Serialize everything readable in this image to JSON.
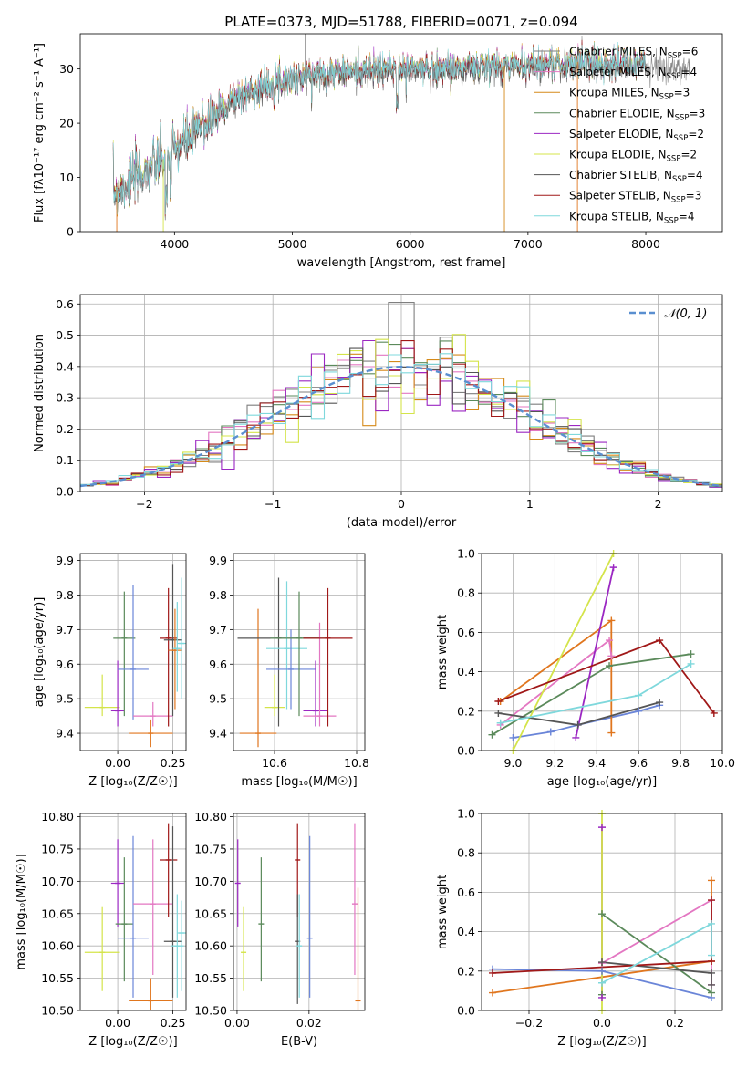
{
  "colors": {
    "Chabrier MILES": "#7f7f7f",
    "Salpeter MILES": "#e377c2",
    "Kroupa MILES": "#d58a1a",
    "Chabrier ELODIE": "#5b8a5b",
    "Salpeter ELODIE": "#9b27c2",
    "Kroupa ELODIE": "#d4e44a",
    "Chabrier STELIB": "#555555",
    "Salpeter STELIB": "#a01818",
    "Kroupa STELIB": "#7fd8dc",
    "blue": "#6a85d8",
    "orange": "#e0761e",
    "normal": "#5a8fd0"
  },
  "chart_data": [
    {
      "id": "spectrum",
      "type": "line",
      "title": "PLATE=0373, MJD=51788, FIBERID=0071, z=0.094",
      "xlabel": "wavelength [Angstrom, rest frame]",
      "ylabel": "Flux [fλ10⁻¹⁷ erg cm⁻² s⁻¹ A⁻¹]",
      "xlim": [
        3200,
        8650
      ],
      "ylim": [
        0,
        36.5
      ],
      "xticks": [
        "4000",
        "5000",
        "6000",
        "7000",
        "8000"
      ],
      "xtick_values": [
        4000,
        5000,
        6000,
        7000,
        8000
      ],
      "yticks": [
        "0",
        "10",
        "20",
        "30"
      ],
      "ytick_values": [
        0,
        10,
        20,
        30
      ],
      "grid": false,
      "legend_placement": "top-right",
      "legend": [
        {
          "base": "Chabrier MILES, N",
          "sub": "SSP",
          "tail": "=6",
          "color_key": "Chabrier MILES"
        },
        {
          "base": "Salpeter MILES, N",
          "sub": "SSP",
          "tail": "=4",
          "color_key": "Salpeter MILES"
        },
        {
          "base": "Kroupa MILES, N",
          "sub": "SSP",
          "tail": "=3",
          "color_key": "Kroupa MILES"
        },
        {
          "base": "Chabrier ELODIE, N",
          "sub": "SSP",
          "tail": "=3",
          "color_key": "Chabrier ELODIE"
        },
        {
          "base": "Salpeter ELODIE, N",
          "sub": "SSP",
          "tail": "=2",
          "color_key": "Salpeter ELODIE"
        },
        {
          "base": "Kroupa ELODIE, N",
          "sub": "SSP",
          "tail": "=2",
          "color_key": "Kroupa ELODIE"
        },
        {
          "base": "Chabrier STELIB, N",
          "sub": "SSP",
          "tail": "=4",
          "color_key": "Chabrier STELIB"
        },
        {
          "base": "Salpeter STELIB, N",
          "sub": "SSP",
          "tail": "=3",
          "color_key": "Salpeter STELIB"
        },
        {
          "base": "Kroupa STELIB, N",
          "sub": "SSP",
          "tail": "=4",
          "color_key": "Kroupa STELIB"
        }
      ],
      "continuum": [
        [
          3500,
          7.5
        ],
        [
          3650,
          10
        ],
        [
          3800,
          12
        ],
        [
          3950,
          14
        ],
        [
          4100,
          17
        ],
        [
          4300,
          21
        ],
        [
          4500,
          24.5
        ],
        [
          4700,
          26.5
        ],
        [
          4900,
          28
        ],
        [
          5100,
          28.8
        ],
        [
          5300,
          29.5
        ],
        [
          5500,
          29.7
        ],
        [
          5700,
          29.9
        ],
        [
          5900,
          30
        ],
        [
          6100,
          30.2
        ],
        [
          6300,
          30.3
        ],
        [
          6500,
          30.4
        ],
        [
          6700,
          30.5
        ],
        [
          6900,
          30.8
        ],
        [
          7100,
          31.2
        ],
        [
          7300,
          31
        ],
        [
          7500,
          31.5
        ],
        [
          7700,
          30.8
        ],
        [
          7900,
          31
        ],
        [
          8100,
          30.2
        ],
        [
          8300,
          30
        ]
      ],
      "spikes": [
        {
          "x": 5110,
          "y": 36.5,
          "color_key": "Chabrier MILES"
        },
        {
          "x": 7420,
          "y": 0,
          "color_key": "orange"
        },
        {
          "x": 6800,
          "y": 0,
          "color_key": "Kroupa MILES"
        },
        {
          "x": 3905,
          "y": 0,
          "color_key": "Kroupa ELODIE"
        },
        {
          "x": 3510,
          "y": 0,
          "color_key": "orange"
        }
      ]
    },
    {
      "id": "residuals",
      "type": "histogram",
      "xlabel": "(data-model)/error",
      "ylabel": "Normed distribution",
      "xlim": [
        -2.5,
        2.5
      ],
      "ylim": [
        0,
        0.63
      ],
      "xticks": [
        "−2",
        "−1",
        "0",
        "1",
        "2"
      ],
      "xtick_values": [
        -2,
        -1,
        0,
        1,
        2
      ],
      "yticks": [
        "0.0",
        "0.1",
        "0.2",
        "0.3",
        "0.4",
        "0.5",
        "0.6"
      ],
      "ytick_values": [
        0,
        0.1,
        0.2,
        0.3,
        0.4,
        0.5,
        0.6
      ],
      "grid": true,
      "legend_placement": "top-right",
      "legend_label": "𝒩(0, 1)",
      "bin_width": 0.1
    },
    {
      "id": "age_vs_Z",
      "type": "errorbar",
      "xlabel": "Z [log₁₀(Z/Z☉)]",
      "ylabel": "age  [log₁₀(age/yr)]",
      "xlim": [
        -0.17,
        0.31
      ],
      "ylim": [
        9.35,
        9.92
      ],
      "xticks": [
        "0.00",
        "0.25"
      ],
      "xtick_values": [
        0,
        0.25
      ],
      "yticks": [
        "9.4",
        "9.5",
        "9.6",
        "9.7",
        "9.8",
        "9.9"
      ],
      "ytick_values": [
        9.4,
        9.5,
        9.6,
        9.7,
        9.8,
        9.9
      ],
      "grid": true,
      "points": [
        {
          "x": -0.07,
          "y": 9.475,
          "xe": 0.08,
          "ylo": 9.45,
          "yhi": 9.57,
          "c": "Kroupa ELODIE"
        },
        {
          "x": 0.0,
          "y": 9.465,
          "xe": 0.03,
          "ylo": 9.42,
          "yhi": 9.61,
          "c": "Salpeter ELODIE"
        },
        {
          "x": 0.03,
          "y": 9.675,
          "xe": 0.05,
          "ylo": 9.45,
          "yhi": 9.81,
          "c": "Chabrier ELODIE"
        },
        {
          "x": 0.07,
          "y": 9.585,
          "xe": 0.07,
          "ylo": 9.44,
          "yhi": 9.83,
          "c": "blue"
        },
        {
          "x": 0.15,
          "y": 9.4,
          "xe": 0.1,
          "ylo": 9.36,
          "yhi": 9.44,
          "c": "orange"
        },
        {
          "x": 0.16,
          "y": 9.45,
          "xe": 0.09,
          "ylo": 9.42,
          "yhi": 9.49,
          "c": "Salpeter MILES"
        },
        {
          "x": 0.23,
          "y": 9.675,
          "xe": 0.04,
          "ylo": 9.42,
          "yhi": 9.82,
          "c": "Salpeter STELIB"
        },
        {
          "x": 0.25,
          "y": 9.67,
          "xe": 0.04,
          "ylo": 9.45,
          "yhi": 9.89,
          "c": "Chabrier STELIB"
        },
        {
          "x": 0.26,
          "y": 9.64,
          "xe": 0.03,
          "ylo": 9.47,
          "yhi": 9.76,
          "c": "orange"
        },
        {
          "x": 0.27,
          "y": 9.645,
          "xe": 0.02,
          "ylo": 9.52,
          "yhi": 9.78,
          "c": "Kroupa STELIB"
        },
        {
          "x": 0.29,
          "y": 9.66,
          "xe": 0.02,
          "ylo": 9.5,
          "yhi": 9.85,
          "c": "Kroupa STELIB"
        }
      ]
    },
    {
      "id": "age_vs_mass",
      "type": "errorbar",
      "xlabel": "mass [log₁₀(M/M☉)]",
      "ylabel": "",
      "xlim": [
        10.5,
        10.82
      ],
      "ylim": [
        9.35,
        9.92
      ],
      "xticks": [
        "10.6",
        "10.8"
      ],
      "xtick_values": [
        10.6,
        10.8
      ],
      "yticks": [
        "9.4",
        "9.5",
        "9.6",
        "9.7",
        "9.8",
        "9.9"
      ],
      "ytick_values": [
        9.4,
        9.5,
        9.6,
        9.7,
        9.8,
        9.9
      ],
      "grid": true,
      "points": [
        {
          "x": 10.56,
          "y": 9.4,
          "xe": 0.045,
          "ylo": 9.36,
          "yhi": 9.76,
          "c": "orange"
        },
        {
          "x": 10.6,
          "y": 9.475,
          "xe": 0.025,
          "ylo": 9.45,
          "yhi": 9.57,
          "c": "Kroupa ELODIE"
        },
        {
          "x": 10.61,
          "y": 9.675,
          "xe": 0.1,
          "ylo": 9.42,
          "yhi": 9.85,
          "c": "Chabrier STELIB"
        },
        {
          "x": 10.63,
          "y": 9.645,
          "xe": 0.05,
          "ylo": 9.47,
          "yhi": 9.84,
          "c": "Kroupa STELIB"
        },
        {
          "x": 10.64,
          "y": 9.585,
          "xe": 0.06,
          "ylo": 9.47,
          "yhi": 9.7,
          "c": "blue"
        },
        {
          "x": 10.66,
          "y": 9.675,
          "xe": 0.07,
          "ylo": 9.45,
          "yhi": 9.81,
          "c": "Chabrier ELODIE"
        },
        {
          "x": 10.7,
          "y": 9.465,
          "xe": 0.03,
          "ylo": 9.42,
          "yhi": 9.61,
          "c": "Salpeter ELODIE"
        },
        {
          "x": 10.71,
          "y": 9.45,
          "xe": 0.04,
          "ylo": 9.42,
          "yhi": 9.72,
          "c": "Salpeter MILES"
        },
        {
          "x": 10.73,
          "y": 9.675,
          "xe": 0.06,
          "ylo": 9.42,
          "yhi": 9.82,
          "c": "Salpeter STELIB"
        }
      ]
    },
    {
      "id": "weight_vs_age",
      "type": "line",
      "xlabel": "age  [log₁₀(age/yr)]",
      "ylabel": "mass weight",
      "xlim": [
        8.85,
        10.0
      ],
      "ylim": [
        0,
        1.0
      ],
      "xticks": [
        "9.0",
        "9.2",
        "9.4",
        "9.6",
        "9.8",
        "10.0"
      ],
      "xtick_values": [
        9.0,
        9.2,
        9.4,
        9.6,
        9.8,
        10.0
      ],
      "yticks": [
        "0.0",
        "0.2",
        "0.4",
        "0.6",
        "0.8",
        "1.0"
      ],
      "ytick_values": [
        0,
        0.2,
        0.4,
        0.6,
        0.8,
        1.0
      ],
      "grid": true,
      "series": [
        {
          "c": "blue",
          "x": [
            9.0,
            9.18,
            9.31,
            9.6,
            9.7
          ],
          "y": [
            0.065,
            0.095,
            0.13,
            0.2,
            0.23
          ]
        },
        {
          "c": "orange",
          "x": [
            8.94,
            9.47,
            9.47
          ],
          "y": [
            0.25,
            0.66,
            0.09
          ]
        },
        {
          "c": "Salpeter MILES",
          "x": [
            8.94,
            9.46,
            9.47
          ],
          "y": [
            0.13,
            0.56,
            0.48
          ]
        },
        {
          "c": "Chabrier ELODIE",
          "x": [
            8.9,
            9.46,
            9.85
          ],
          "y": [
            0.08,
            0.43,
            0.49
          ]
        },
        {
          "c": "Salpeter ELODIE",
          "x": [
            9.3,
            9.48
          ],
          "y": [
            0.065,
            0.93
          ]
        },
        {
          "c": "Kroupa ELODIE",
          "x": [
            9.0,
            9.48
          ],
          "y": [
            0.0,
            1.0
          ]
        },
        {
          "c": "Chabrier STELIB",
          "x": [
            8.93,
            9.31,
            9.7
          ],
          "y": [
            0.19,
            0.13,
            0.245
          ]
        },
        {
          "c": "Salpeter STELIB",
          "x": [
            8.93,
            9.7,
            9.96
          ],
          "y": [
            0.25,
            0.56,
            0.19
          ]
        },
        {
          "c": "Kroupa STELIB",
          "x": [
            8.94,
            9.6,
            9.85
          ],
          "y": [
            0.14,
            0.28,
            0.44
          ]
        }
      ]
    },
    {
      "id": "mass_vs_Z",
      "type": "errorbar",
      "xlabel": "Z [log₁₀(Z/Z☉)]",
      "ylabel": "mass [log₁₀(M/M☉)]",
      "xlim": [
        -0.17,
        0.31
      ],
      "ylim": [
        10.5,
        10.805
      ],
      "xticks": [
        "0.00",
        "0.25"
      ],
      "xtick_values": [
        0,
        0.25
      ],
      "yticks": [
        "10.50",
        "10.55",
        "10.60",
        "10.65",
        "10.70",
        "10.75",
        "10.80"
      ],
      "ytick_values": [
        10.5,
        10.55,
        10.6,
        10.65,
        10.7,
        10.75,
        10.8
      ],
      "grid": true,
      "points": [
        {
          "x": -0.07,
          "y": 10.59,
          "xe": 0.08,
          "ylo": 10.53,
          "yhi": 10.66,
          "c": "Kroupa ELODIE"
        },
        {
          "x": 0.0,
          "y": 10.697,
          "xe": 0.03,
          "ylo": 10.63,
          "yhi": 10.765,
          "c": "Salpeter ELODIE"
        },
        {
          "x": 0.03,
          "y": 10.634,
          "xe": 0.04,
          "ylo": 10.545,
          "yhi": 10.737,
          "c": "Chabrier ELODIE"
        },
        {
          "x": 0.07,
          "y": 10.612,
          "xe": 0.07,
          "ylo": 10.52,
          "yhi": 10.77,
          "c": "blue"
        },
        {
          "x": 0.15,
          "y": 10.515,
          "xe": 0.1,
          "ylo": 10.5,
          "yhi": 10.55,
          "c": "orange"
        },
        {
          "x": 0.16,
          "y": 10.665,
          "xe": 0.09,
          "ylo": 10.555,
          "yhi": 10.765,
          "c": "Salpeter MILES"
        },
        {
          "x": 0.23,
          "y": 10.733,
          "xe": 0.04,
          "ylo": 10.645,
          "yhi": 10.79,
          "c": "Salpeter STELIB"
        },
        {
          "x": 0.25,
          "y": 10.607,
          "xe": 0.04,
          "ylo": 10.52,
          "yhi": 10.785,
          "c": "Chabrier STELIB"
        },
        {
          "x": 0.27,
          "y": 10.6,
          "xe": 0.03,
          "ylo": 10.52,
          "yhi": 10.68,
          "c": "Kroupa STELIB"
        },
        {
          "x": 0.29,
          "y": 10.62,
          "xe": 0.02,
          "ylo": 10.53,
          "yhi": 10.67,
          "c": "Kroupa STELIB"
        }
      ]
    },
    {
      "id": "mass_vs_ebv",
      "type": "errorbar",
      "xlabel": "E(B-V)",
      "ylabel": "",
      "xlim": [
        -0.001,
        0.0355
      ],
      "ylim": [
        10.5,
        10.805
      ],
      "xticks": [
        "0.00",
        "0.02"
      ],
      "xtick_values": [
        0,
        0.02
      ],
      "yticks": [
        "10.50",
        "10.55",
        "10.60",
        "10.65",
        "10.70",
        "10.75",
        "10.80"
      ],
      "ytick_values": [
        10.5,
        10.55,
        10.6,
        10.65,
        10.7,
        10.75,
        10.8
      ],
      "grid": true,
      "points": [
        {
          "x": 0.0002,
          "y": 10.697,
          "xe": 0,
          "ylo": 10.63,
          "yhi": 10.765,
          "c": "Salpeter ELODIE"
        },
        {
          "x": 0.0018,
          "y": 10.59,
          "xe": 0,
          "ylo": 10.53,
          "yhi": 10.66,
          "c": "Kroupa ELODIE"
        },
        {
          "x": 0.0067,
          "y": 10.634,
          "xe": 0,
          "ylo": 10.545,
          "yhi": 10.737,
          "c": "Chabrier ELODIE"
        },
        {
          "x": 0.0168,
          "y": 10.733,
          "xe": 0,
          "ylo": 10.645,
          "yhi": 10.79,
          "c": "Salpeter STELIB"
        },
        {
          "x": 0.0168,
          "y": 10.607,
          "xe": 0,
          "ylo": 10.51,
          "yhi": 10.68,
          "c": "Chabrier STELIB"
        },
        {
          "x": 0.0173,
          "y": 10.6,
          "xe": 0,
          "ylo": 10.52,
          "yhi": 10.68,
          "c": "Kroupa STELIB"
        },
        {
          "x": 0.0202,
          "y": 10.612,
          "xe": 0,
          "ylo": 10.52,
          "yhi": 10.77,
          "c": "blue"
        },
        {
          "x": 0.0327,
          "y": 10.665,
          "xe": 0,
          "ylo": 10.555,
          "yhi": 10.79,
          "c": "Salpeter MILES"
        },
        {
          "x": 0.0336,
          "y": 10.515,
          "xe": 0,
          "ylo": 10.5,
          "yhi": 10.69,
          "c": "orange"
        }
      ]
    },
    {
      "id": "weight_vs_Z",
      "type": "line",
      "xlabel": "Z [log₁₀(Z/Z☉)]",
      "ylabel": "mass weight",
      "xlim": [
        -0.33,
        0.33
      ],
      "ylim": [
        0,
        1.0
      ],
      "xticks": [
        "−0.2",
        "0.0",
        "0.2"
      ],
      "xtick_values": [
        -0.2,
        0,
        0.2
      ],
      "yticks": [
        "0.0",
        "0.2",
        "0.4",
        "0.6",
        "0.8",
        "1.0"
      ],
      "ytick_values": [
        0,
        0.2,
        0.4,
        0.6,
        0.8,
        1.0
      ],
      "grid": true,
      "series": [
        {
          "c": "blue",
          "x": [
            -0.3,
            0.0,
            0.3
          ],
          "y": [
            0.21,
            0.2,
            0.065
          ]
        },
        {
          "c": "orange",
          "x": [
            -0.3,
            0.3,
            0.3
          ],
          "y": [
            0.09,
            0.25,
            0.66
          ]
        },
        {
          "c": "Salpeter MILES",
          "x": [
            0.0,
            0.3,
            0.3
          ],
          "y": [
            0.24,
            0.56,
            0.13
          ]
        },
        {
          "c": "Chabrier ELODIE",
          "x": [
            0.0,
            0.0,
            0.3
          ],
          "y": [
            0.08,
            0.49,
            0.09
          ]
        },
        {
          "c": "Salpeter ELODIE",
          "x": [
            0.0,
            0.0
          ],
          "y": [
            0.065,
            0.93
          ]
        },
        {
          "c": "Kroupa ELODIE",
          "x": [
            0.0,
            0.0
          ],
          "y": [
            0.0,
            1.0
          ]
        },
        {
          "c": "Chabrier STELIB",
          "x": [
            0.0,
            0.3,
            0.3
          ],
          "y": [
            0.245,
            0.19,
            0.13
          ]
        },
        {
          "c": "Salpeter STELIB",
          "x": [
            -0.3,
            0.3,
            0.3
          ],
          "y": [
            0.19,
            0.25,
            0.56
          ]
        },
        {
          "c": "Kroupa STELIB",
          "x": [
            0.0,
            0.3,
            0.3
          ],
          "y": [
            0.14,
            0.44,
            0.28
          ]
        }
      ]
    }
  ]
}
